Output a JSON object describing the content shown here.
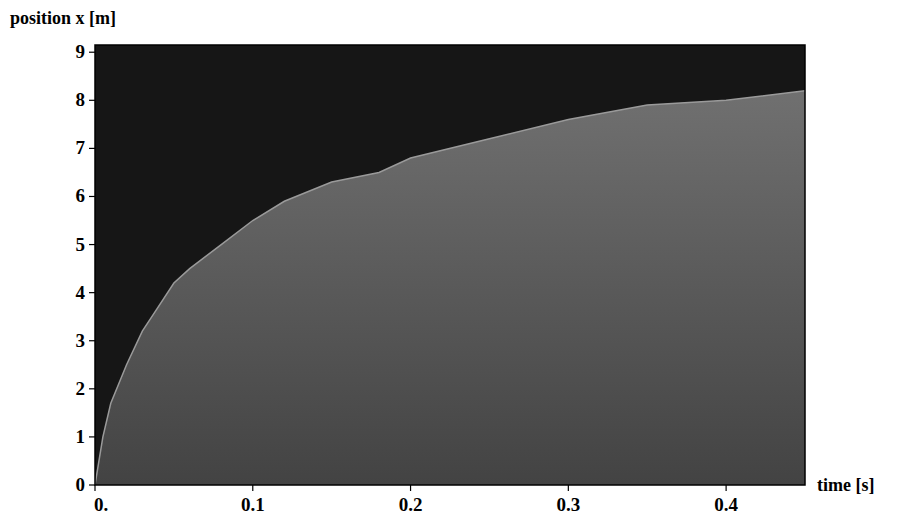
{
  "chart_data": {
    "type": "area",
    "y_label": "position x [m]",
    "x_label": "time [s]",
    "x": [
      0,
      0.005,
      0.01,
      0.02,
      0.03,
      0.04,
      0.05,
      0.06,
      0.08,
      0.1,
      0.12,
      0.15,
      0.18,
      0.2,
      0.25,
      0.3,
      0.35,
      0.4,
      0.45
    ],
    "values": [
      0,
      1.0,
      1.7,
      2.5,
      3.2,
      3.7,
      4.2,
      4.5,
      5.0,
      5.5,
      5.9,
      6.3,
      6.5,
      6.8,
      7.2,
      7.6,
      7.9,
      8.0,
      8.2
    ],
    "color": "#7a7a7a",
    "xlim": [
      0,
      0.45
    ],
    "ylim": [
      0,
      9.15
    ],
    "xticks": [
      {
        "value": 0,
        "label": "0."
      },
      0.1,
      0.2,
      0.3,
      0.4
    ],
    "yticks": [
      0,
      1,
      2,
      3,
      4,
      5,
      6,
      7,
      8,
      9
    ],
    "grid": false
  }
}
